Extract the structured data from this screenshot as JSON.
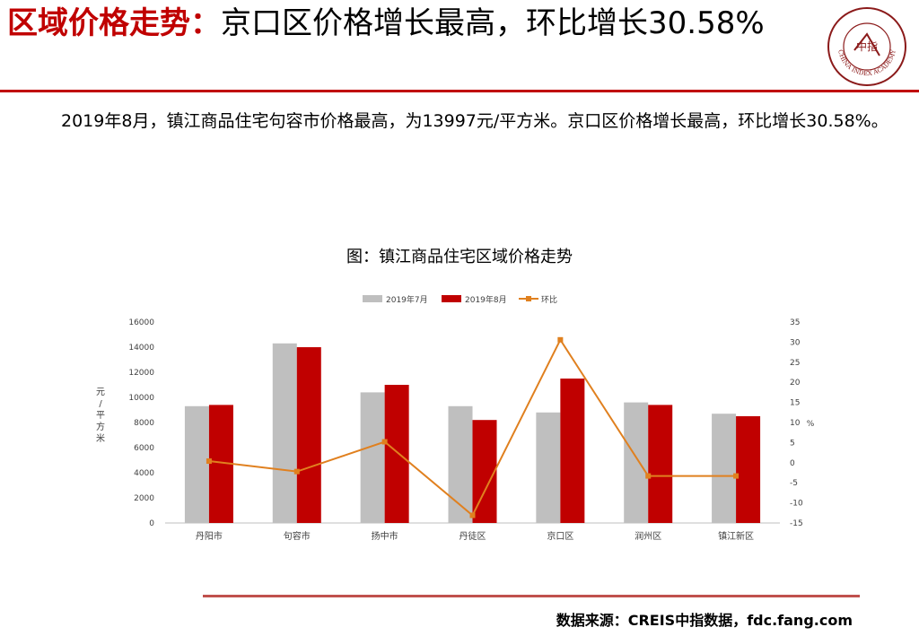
{
  "header": {
    "title_highlight": "区域价格走势：",
    "title_rest": "京口区价格增长最高，环比增长30.58%",
    "logo_text": "中指",
    "logo_ring_text": "CHINA INDEX ACADEMY"
  },
  "summary": "2019年8月，镇江商品住宅句容市价格最高，为13997元/平方米。京口区价格增长最高，环比增长30.58%。",
  "chart_title": "图：镇江商品住宅区域价格走势",
  "source": "数据来源：CREIS中指数据，fdc.fang.com",
  "colors": {
    "accent": "#c00000",
    "series_jul": "#bfbfbf",
    "series_aug": "#c00000",
    "series_mom": "#e0801f"
  },
  "chart_data": {
    "type": "bar",
    "categories": [
      "丹阳市",
      "句容市",
      "扬中市",
      "丹徒区",
      "京口区",
      "润州区",
      "镇江新区"
    ],
    "series": [
      {
        "name": "2019年7月",
        "values": [
          9300,
          14300,
          10400,
          9300,
          8800,
          9600,
          8700
        ]
      },
      {
        "name": "2019年8月",
        "values": [
          9400,
          13997,
          11000,
          8200,
          11500,
          9400,
          8500
        ]
      },
      {
        "name": "环比",
        "type": "line",
        "axis": "right",
        "values": [
          0.4,
          -2.2,
          5.2,
          -13.1,
          30.58,
          -3.3,
          -3.3
        ]
      }
    ],
    "ylabel": "元/平方米",
    "ylim": [
      0,
      16000
    ],
    "yticks": [
      0,
      2000,
      4000,
      6000,
      8000,
      10000,
      12000,
      14000,
      16000
    ],
    "y2label": "%",
    "y2lim": [
      -15,
      35
    ],
    "y2ticks": [
      -15,
      -10,
      -5,
      0,
      5,
      10,
      15,
      20,
      25,
      30,
      35
    ],
    "legend": "top"
  }
}
